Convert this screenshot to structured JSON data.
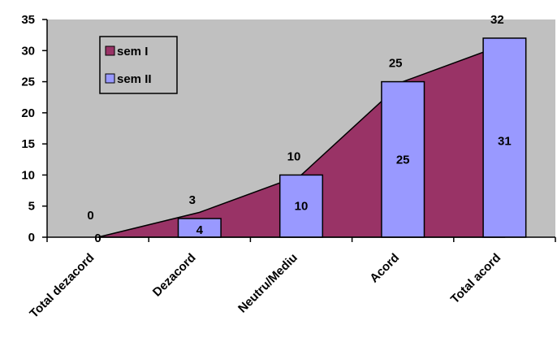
{
  "chart_data": {
    "type": "area+bar",
    "categories": [
      "Total dezacord",
      "Dezacord",
      "Neutru/Mediu",
      "Acord",
      "Total acord"
    ],
    "series": [
      {
        "name": "sem I",
        "type": "area",
        "values": [
          0,
          4,
          10,
          25,
          31
        ]
      },
      {
        "name": "sem II",
        "type": "bar",
        "values": [
          0,
          3,
          10,
          25,
          32
        ]
      }
    ],
    "ylim": [
      0,
      35
    ],
    "yticks": [
      0,
      5,
      10,
      15,
      20,
      25,
      30,
      35
    ],
    "grid": false,
    "legend": "top-left",
    "colors": {
      "plot_bg": "#c0c0c0",
      "sem_I": "#993366",
      "sem_II": "#9999ff"
    }
  }
}
